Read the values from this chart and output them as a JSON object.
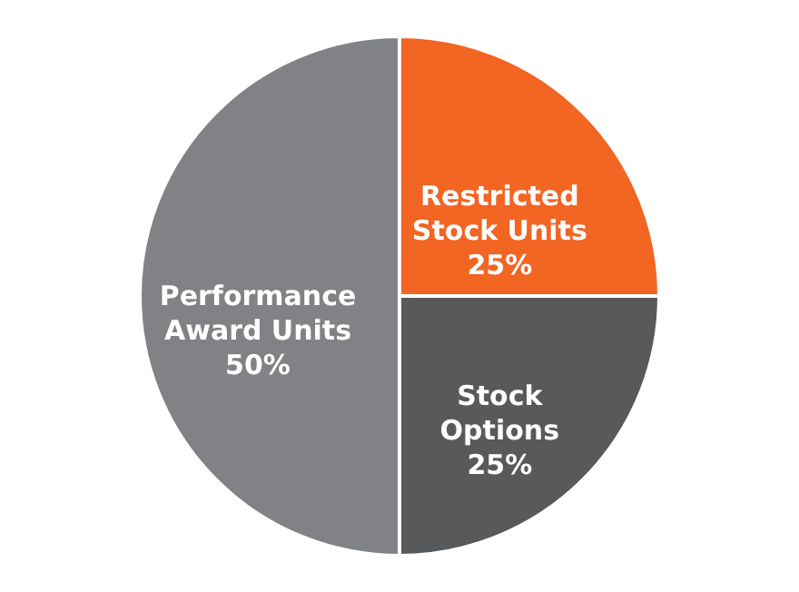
{
  "chart_data": {
    "type": "pie",
    "categories": [
      "Restricted\nStock Units",
      "Stock\nOptions",
      "Performance\nAward Units"
    ],
    "values": [
      25,
      25,
      50
    ],
    "colors": [
      "#f26522",
      "#58595b",
      "#808285"
    ],
    "value_labels": [
      "25%",
      "25%",
      "50%"
    ]
  }
}
